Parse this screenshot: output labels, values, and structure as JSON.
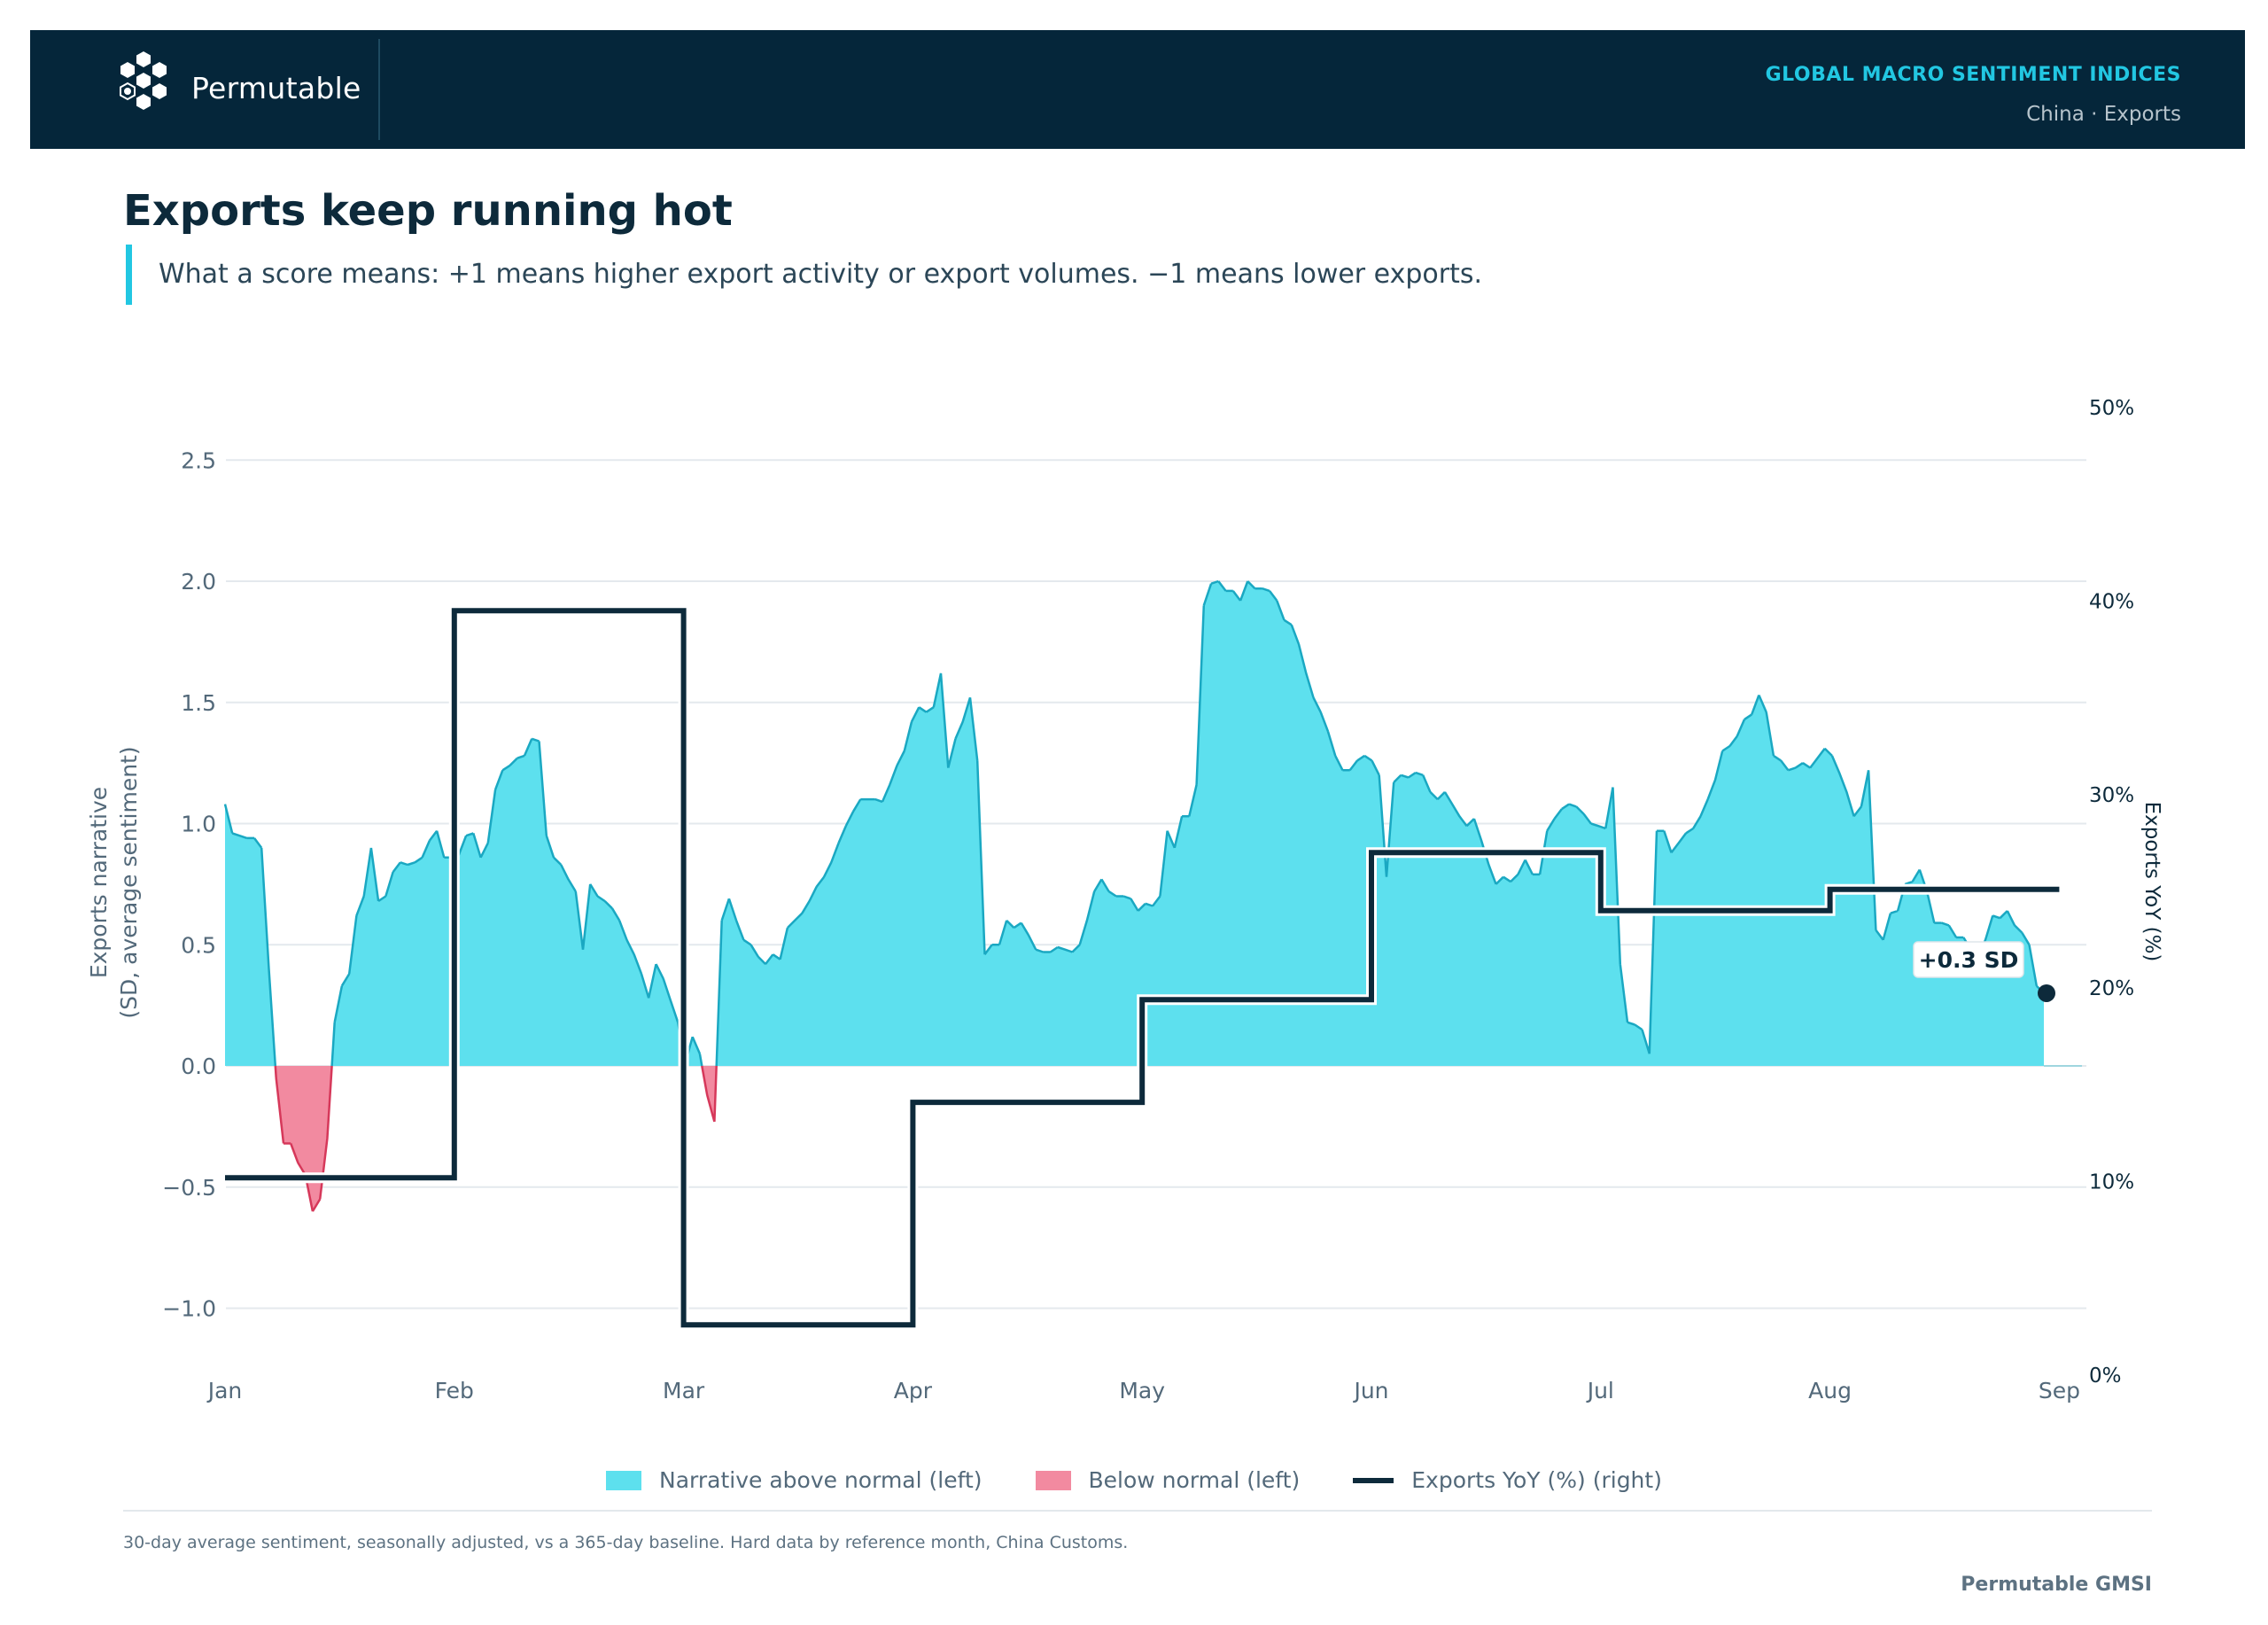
{
  "header": {
    "brand": "Permutable",
    "title": "GLOBAL MACRO SENTIMENT INDICES",
    "subtitle": "China · Exports"
  },
  "page": {
    "title": "Exports keep running hot",
    "subtitle": "What a score means: +1 means higher export activity or export volumes. −1 means lower exports.",
    "footnote": "30-day average sentiment, seasonally adjusted, vs a 365-day baseline. Hard data by reference month, China Customs.",
    "footer_brand": "Permutable GMSI"
  },
  "colors": {
    "above": "#5de0ee",
    "above_line": "#1aa8c2",
    "below": "#f28aa0",
    "below_line": "#d6385a",
    "yoy": "#0d2a3b",
    "grid": "#e4e9ed"
  },
  "legend": [
    {
      "label": "Narrative above normal (left)",
      "kind": "box",
      "color": "#5de0ee"
    },
    {
      "label": "Below normal (left)",
      "kind": "box",
      "color": "#f28aa0"
    },
    {
      "label": "Exports YoY (%) (right)",
      "kind": "line",
      "color": "#0d2a3b"
    }
  ],
  "chart_data": {
    "type": "area",
    "x_tick_labels": [
      "Jan",
      "Feb",
      "Mar",
      "Apr",
      "May",
      "Jun",
      "Jul",
      "Aug",
      "Sep"
    ],
    "y_left": {
      "label": "Exports narrative\n(SD, average sentiment)",
      "ticks": [
        -1.0,
        -0.5,
        0.0,
        0.5,
        1.0,
        1.5,
        2.0,
        2.5
      ],
      "tick_labels": [
        "−1.0",
        "−0.5",
        "0.0",
        "0.5",
        "1.0",
        "1.5",
        "2.0",
        "2.5"
      ],
      "range": [
        -1.25,
        2.75
      ]
    },
    "y_right": {
      "label": "Exports YoY (%)",
      "ticks": [
        0,
        10,
        20,
        30,
        40,
        50
      ],
      "tick_labels": [
        "0%",
        "10%",
        "20%",
        "30%",
        "40%",
        "50%"
      ],
      "range": [
        0,
        50
      ]
    },
    "grid": true,
    "legend_position": "bottom",
    "series": [
      {
        "name": "Narrative above normal (left)",
        "kind": "area",
        "axis": "left",
        "x_start": "Jan 1",
        "x_end": "Sep 9",
        "values": [
          1.08,
          0.96,
          0.95,
          0.94,
          0.94,
          0.9,
          0.4,
          -0.05,
          -0.32,
          -0.32,
          -0.4,
          -0.45,
          -0.6,
          -0.55,
          -0.3,
          0.18,
          0.33,
          0.38,
          0.62,
          0.7,
          0.9,
          0.68,
          0.7,
          0.8,
          0.84,
          0.83,
          0.84,
          0.86,
          0.93,
          0.97,
          0.86,
          0.86,
          0.87,
          0.95,
          0.96,
          0.86,
          0.92,
          1.14,
          1.22,
          1.24,
          1.27,
          1.28,
          1.35,
          1.34,
          0.95,
          0.86,
          0.83,
          0.77,
          0.72,
          0.48,
          0.75,
          0.7,
          0.68,
          0.65,
          0.6,
          0.52,
          0.46,
          0.38,
          0.28,
          0.42,
          0.36,
          0.27,
          0.18,
          0.01,
          0.12,
          0.05,
          -0.12,
          -0.23,
          0.6,
          0.69,
          0.6,
          0.52,
          0.5,
          0.45,
          0.42,
          0.46,
          0.44,
          0.57,
          0.6,
          0.63,
          0.68,
          0.74,
          0.78,
          0.84,
          0.92,
          0.99,
          1.05,
          1.1,
          1.1,
          1.1,
          1.09,
          1.16,
          1.24,
          1.3,
          1.42,
          1.48,
          1.46,
          1.48,
          1.62,
          1.23,
          1.35,
          1.42,
          1.52,
          1.26,
          0.46,
          0.5,
          0.5,
          0.6,
          0.57,
          0.59,
          0.54,
          0.48,
          0.47,
          0.47,
          0.49,
          0.48,
          0.47,
          0.5,
          0.6,
          0.72,
          0.77,
          0.72,
          0.7,
          0.7,
          0.69,
          0.64,
          0.67,
          0.66,
          0.7,
          0.97,
          0.9,
          1.03,
          1.03,
          1.16,
          1.9,
          1.99,
          2.0,
          1.96,
          1.96,
          1.92,
          2.0,
          1.97,
          1.97,
          1.96,
          1.92,
          1.84,
          1.82,
          1.74,
          1.62,
          1.52,
          1.46,
          1.38,
          1.28,
          1.22,
          1.22,
          1.26,
          1.28,
          1.26,
          1.2,
          0.78,
          1.17,
          1.2,
          1.19,
          1.21,
          1.2,
          1.13,
          1.1,
          1.13,
          1.08,
          1.03,
          0.99,
          1.02,
          0.93,
          0.83,
          0.75,
          0.78,
          0.76,
          0.79,
          0.85,
          0.79,
          0.79,
          0.97,
          1.02,
          1.06,
          1.08,
          1.07,
          1.04,
          1.0,
          0.99,
          0.98,
          1.15,
          0.42,
          0.18,
          0.17,
          0.15,
          0.05,
          0.97,
          0.97,
          0.88,
          0.92,
          0.96,
          0.98,
          1.03,
          1.1,
          1.18,
          1.3,
          1.32,
          1.36,
          1.43,
          1.45,
          1.53,
          1.46,
          1.28,
          1.26,
          1.22,
          1.23,
          1.25,
          1.23,
          1.27,
          1.31,
          1.28,
          1.21,
          1.13,
          1.03,
          1.07,
          1.22,
          0.56,
          0.52,
          0.63,
          0.64,
          0.75,
          0.76,
          0.81,
          0.72,
          0.59,
          0.59,
          0.58,
          0.53,
          0.53,
          0.48,
          0.45,
          0.52,
          0.62,
          0.61,
          0.64,
          0.58,
          0.55,
          0.5,
          0.33,
          0.3
        ]
      },
      {
        "name": "Exports YoY (%) (right)",
        "kind": "step",
        "axis": "right",
        "months": [
          "Jan",
          "Feb",
          "Mar",
          "Apr",
          "May",
          "Jun",
          "Jul",
          "Aug"
        ],
        "values": [
          10.2,
          39.5,
          2.6,
          14.1,
          19.4,
          27.0,
          24.0,
          25.1
        ]
      }
    ],
    "annotations": [
      {
        "text": "+0.3 SD",
        "target": "last sentiment value",
        "value": 0.3
      }
    ]
  }
}
